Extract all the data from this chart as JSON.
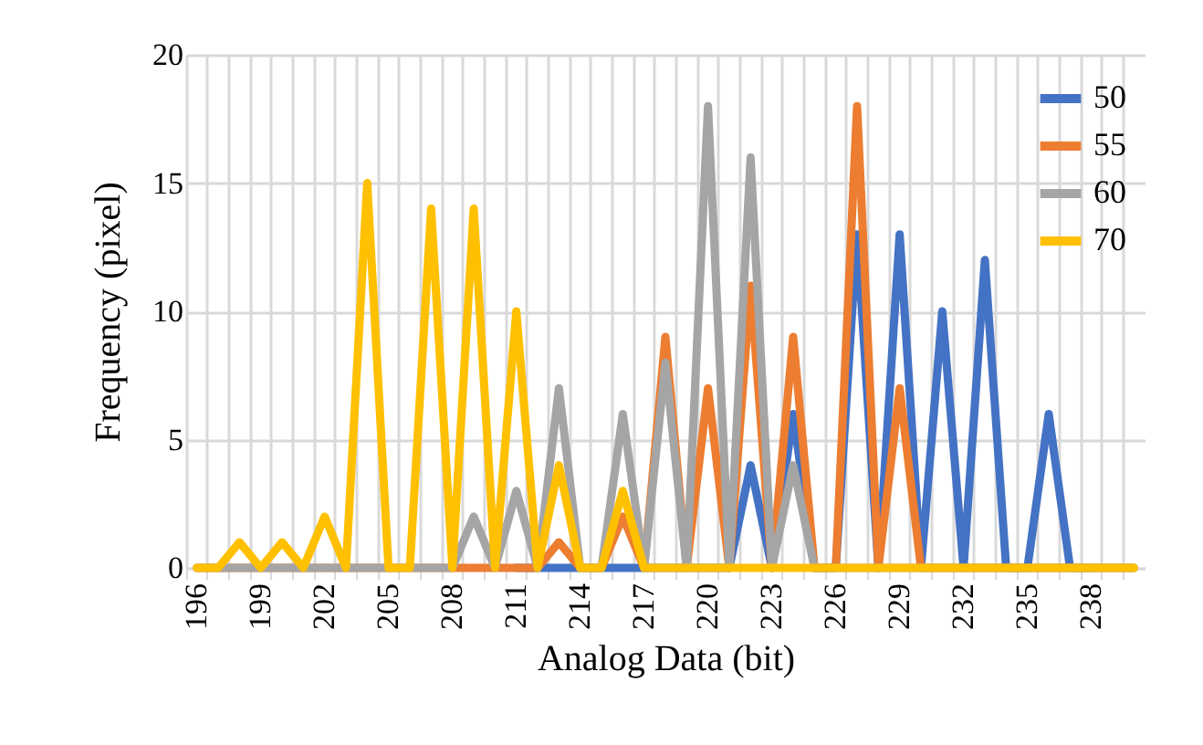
{
  "chart_data": {
    "type": "line",
    "xlabel": "Analog Data (bit)",
    "ylabel": "Frequency (pixel)",
    "categories": [
      "196",
      null,
      null,
      "199",
      null,
      null,
      "202",
      null,
      null,
      "205",
      null,
      null,
      "208",
      null,
      null,
      "211",
      null,
      null,
      "214",
      null,
      null,
      "217",
      null,
      null,
      "220",
      null,
      null,
      "223",
      null,
      null,
      "226",
      null,
      null,
      "229",
      null,
      null,
      "232",
      null,
      null,
      "235",
      null,
      null,
      "238",
      null,
      null
    ],
    "series": [
      {
        "name": "50",
        "color": "#4472c4",
        "values": [
          null,
          null,
          null,
          null,
          null,
          null,
          null,
          null,
          null,
          null,
          null,
          null,
          null,
          null,
          null,
          0,
          0,
          0,
          0,
          0,
          0,
          0,
          0,
          0,
          0,
          0,
          4,
          0,
          6,
          0,
          0,
          13,
          0,
          13,
          0,
          10,
          0,
          12,
          0,
          0,
          6,
          0,
          0,
          null,
          null
        ]
      },
      {
        "name": "55",
        "color": "#ed7d31",
        "values": [
          0,
          0,
          0,
          0,
          0,
          0,
          0,
          0,
          0,
          0,
          0,
          0,
          0,
          0,
          0,
          0,
          0,
          1,
          0,
          0,
          2,
          0,
          9,
          0,
          7,
          0,
          11,
          0,
          9,
          0,
          0,
          18,
          0,
          7,
          0,
          0,
          0,
          0,
          0,
          0,
          0,
          0,
          0,
          0,
          0
        ]
      },
      {
        "name": "60",
        "color": "#a5a5a5",
        "values": [
          0,
          0,
          0,
          0,
          0,
          0,
          0,
          0,
          0,
          0,
          0,
          0,
          0,
          2,
          0,
          3,
          0,
          7,
          0,
          0,
          6,
          0,
          8,
          0,
          18,
          0,
          16,
          0,
          4,
          0,
          0,
          0,
          0,
          0,
          0,
          0,
          0,
          0,
          0,
          0,
          0,
          0,
          0,
          0,
          0
        ]
      },
      {
        "name": "70",
        "color": "#ffc000",
        "values": [
          0,
          0,
          1,
          0,
          1,
          0,
          2,
          0,
          15,
          0,
          0,
          14,
          0,
          14,
          0,
          10,
          0,
          4,
          0,
          0,
          3,
          0,
          0,
          0,
          0,
          0,
          0,
          0,
          0,
          0,
          0,
          0,
          0,
          0,
          0,
          0,
          0,
          0,
          0,
          0,
          0,
          0,
          0,
          0,
          0
        ]
      }
    ],
    "ylim": [
      0,
      20
    ],
    "yticks": [
      0,
      5,
      10,
      15,
      20
    ],
    "grid": true,
    "legend": "top right"
  }
}
